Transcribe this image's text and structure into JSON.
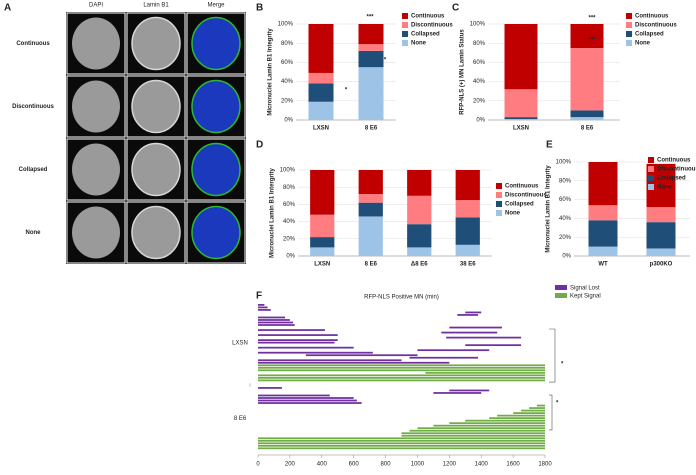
{
  "figure_a": {
    "label": "A",
    "columns": [
      "DAPI",
      "Lamin B1",
      "Merge"
    ],
    "rows": [
      "Continuous",
      "Discontinuous",
      "Collapsed",
      "None"
    ]
  },
  "chart_data": [
    {
      "type": "stacked_bar",
      "label": "B",
      "ylabel": "Micronuclei Lamin B1 Integrity",
      "categories": [
        "LXSN",
        "8 E6"
      ],
      "series": [
        {
          "name": "None",
          "color": "#9dc3e6",
          "values": [
            19,
            55
          ]
        },
        {
          "name": "Collapsed",
          "color": "#1f4e79",
          "values": [
            19,
            17
          ]
        },
        {
          "name": "Discontinuous",
          "color": "#ff7c80",
          "values": [
            11,
            7
          ]
        },
        {
          "name": "Continuous",
          "color": "#c00000",
          "values": [
            51,
            21
          ]
        }
      ],
      "ylim": [
        0,
        100
      ],
      "yticks": [
        {
          "value": 0,
          "label": "0%"
        },
        {
          "value": 20,
          "label": "20%"
        },
        {
          "value": 40,
          "label": "40%"
        },
        {
          "value": 60,
          "label": "60%"
        },
        {
          "value": 80,
          "label": "80%"
        },
        {
          "value": 100,
          "label": "100%"
        }
      ],
      "annotations": [
        "***",
        "*",
        "*"
      ]
    },
    {
      "type": "stacked_bar",
      "label": "C",
      "ylabel": "RFP-NLS (+) MN Lamin Status",
      "categories": [
        "LXSN",
        "8 E6"
      ],
      "series": [
        {
          "name": "None",
          "color": "#9dc3e6",
          "values": [
            1,
            3
          ]
        },
        {
          "name": "Collapsed",
          "color": "#1f4e79",
          "values": [
            2,
            7
          ]
        },
        {
          "name": "Discontinuous",
          "color": "#ff7c80",
          "values": [
            29,
            65
          ]
        },
        {
          "name": "Continuous",
          "color": "#c00000",
          "values": [
            68,
            25
          ]
        }
      ],
      "ylim": [
        0,
        100
      ],
      "yticks": [
        {
          "value": 0,
          "label": "0%"
        },
        {
          "value": 20,
          "label": "20%"
        },
        {
          "value": 40,
          "label": "40%"
        },
        {
          "value": 60,
          "label": "60%"
        },
        {
          "value": 80,
          "label": "80%"
        },
        {
          "value": 100,
          "label": "100%"
        }
      ],
      "annotations": [
        "***",
        "***"
      ]
    },
    {
      "type": "stacked_bar",
      "label": "D",
      "ylabel": "Micronuclei Lamin B1 Intergrity",
      "categories": [
        "LXSN",
        "8 E6",
        "Δ8 E6",
        "38 E6"
      ],
      "series": [
        {
          "name": "None",
          "color": "#9dc3e6",
          "values": [
            10,
            46,
            10,
            13
          ]
        },
        {
          "name": "Collapsed",
          "color": "#1f4e79",
          "values": [
            12,
            16,
            27,
            32
          ]
        },
        {
          "name": "Discontinuous",
          "color": "#ff7c80",
          "values": [
            26,
            10,
            33,
            20
          ]
        },
        {
          "name": "Continuous",
          "color": "#c00000",
          "values": [
            52,
            28,
            30,
            35
          ]
        }
      ],
      "ylim": [
        0,
        100
      ],
      "yticks": [
        {
          "value": 0,
          "label": "0%"
        },
        {
          "value": 20,
          "label": "20%"
        },
        {
          "value": 40,
          "label": "40%"
        },
        {
          "value": 60,
          "label": "60%"
        },
        {
          "value": 80,
          "label": "80%"
        },
        {
          "value": 100,
          "label": "100%"
        }
      ],
      "annotations": []
    },
    {
      "type": "stacked_bar",
      "label": "E",
      "ylabel": "Micronuclei Lamin B1 Integrity",
      "categories": [
        "WT",
        "p300KO"
      ],
      "series": [
        {
          "name": "None",
          "color": "#9dc3e6",
          "values": [
            10,
            8
          ]
        },
        {
          "name": "Collapsed",
          "color": "#1f4e79",
          "values": [
            28,
            28
          ]
        },
        {
          "name": "Discontinuous",
          "color": "#ff7c80",
          "values": [
            16,
            16
          ]
        },
        {
          "name": "Continuous",
          "color": "#c00000",
          "values": [
            46,
            46
          ]
        }
      ],
      "ylim": [
        0,
        100
      ],
      "yticks": [
        {
          "value": 0,
          "label": "0%"
        },
        {
          "value": 20,
          "label": "20%"
        },
        {
          "value": 40,
          "label": "40%"
        },
        {
          "value": 60,
          "label": "60%"
        },
        {
          "value": 80,
          "label": "80%"
        },
        {
          "value": 100,
          "label": "100%"
        }
      ],
      "annotations": []
    },
    {
      "type": "interval",
      "label": "F",
      "title": "RFP-NLS Positive MN (min)",
      "series": [
        {
          "name": "Signal Lost",
          "color": "#7030a0"
        },
        {
          "name": "Kept Signal",
          "color": "#70ad47"
        }
      ],
      "groups": [
        {
          "name": "LXSN",
          "lost": [
            [
              0,
              40
            ],
            [
              0,
              60
            ],
            [
              0,
              80
            ],
            [
              1300,
              1400
            ],
            [
              1250,
              1380
            ],
            [
              0,
              170
            ],
            [
              0,
              200
            ],
            [
              0,
              220
            ],
            [
              0,
              230
            ],
            [
              1200,
              1530
            ],
            [
              0,
              420
            ],
            [
              1150,
              1500
            ],
            [
              0,
              500
            ],
            [
              1180,
              1650
            ],
            [
              0,
              500
            ],
            [
              0,
              480
            ],
            [
              1300,
              1650
            ],
            [
              0,
              600
            ],
            [
              1000,
              1450
            ],
            [
              0,
              720
            ],
            [
              300,
              1000
            ],
            [
              950,
              1380
            ],
            [
              0,
              900
            ],
            [
              0,
              1200
            ]
          ],
          "kept": [
            [
              0,
              1800
            ],
            [
              0,
              1800
            ],
            [
              0,
              1800
            ],
            [
              1050,
              1800
            ],
            [
              0,
              1800
            ],
            [
              0,
              1800
            ],
            [
              0,
              1800
            ]
          ]
        },
        {
          "name": "8 E6",
          "lost": [
            [
              0,
              150
            ],
            [
              1200,
              1450
            ],
            [
              1100,
              1400
            ],
            [
              0,
              450
            ],
            [
              0,
              600
            ],
            [
              0,
              620
            ],
            [
              0,
              650
            ]
          ],
          "kept": [
            [
              1750,
              1800
            ],
            [
              1700,
              1800
            ],
            [
              1650,
              1800
            ],
            [
              1600,
              1800
            ],
            [
              1500,
              1800
            ],
            [
              1450,
              1800
            ],
            [
              1300,
              1800
            ],
            [
              1200,
              1800
            ],
            [
              1100,
              1800
            ],
            [
              1000,
              1800
            ],
            [
              950,
              1800
            ],
            [
              900,
              1800
            ],
            [
              900,
              1800
            ],
            [
              0,
              1800
            ],
            [
              0,
              1800
            ],
            [
              0,
              1800
            ],
            [
              0,
              1800
            ],
            [
              0,
              1800
            ]
          ]
        }
      ],
      "xlim": [
        0,
        1800
      ],
      "xticks": [
        0,
        200,
        400,
        600,
        800,
        1000,
        1200,
        1400,
        1600,
        1800
      ],
      "annotations": [
        "*",
        "*"
      ]
    }
  ]
}
